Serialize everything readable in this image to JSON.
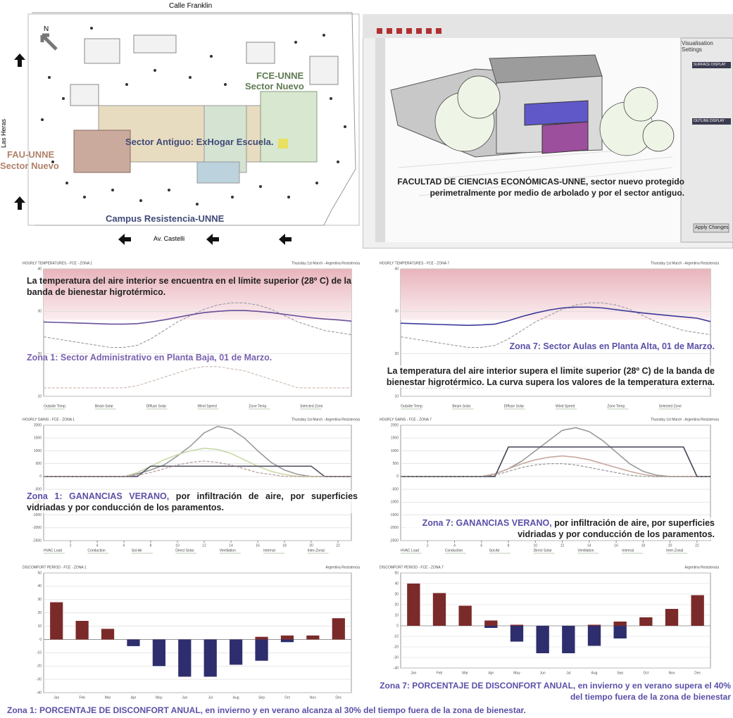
{
  "map": {
    "street_top": "Calle Franklin",
    "north": "N",
    "fce_label": "FCE-UNNE",
    "fce_sector": "Sector Nuevo",
    "street_left": "Las Heras",
    "fau_label": "FAU-UNNE",
    "fau_sector": "Sector Nuevo",
    "old_sector": "Sector Antiguo: ExHogar Escuela.",
    "campus": "Campus Resistencia-UNNE",
    "street_bottom": "Av. Castelli"
  },
  "screenshot": {
    "panel_title": "Visualisation Settings",
    "surface_section": "SURFACE DISPLAY",
    "outline_section": "OUTLINE DISPLAY",
    "apply_button": "Apply Changes",
    "caption_line1": "FACULTAD DE CIENCIAS ECONÓMICAS-UNNE, sector nuevo protegido",
    "caption_line2": "perimetralmente por medio de arbolado y por el sector antiguo."
  },
  "chart_data": [
    {
      "type": "line",
      "title": "HOURLY TEMPERATURES - FCE - ZONA 1",
      "subtitle": "Thursday 1st March - Argentina Resistencia",
      "x": [
        0,
        1,
        2,
        3,
        4,
        5,
        6,
        7,
        8,
        9,
        10,
        11,
        12,
        13,
        14,
        15,
        16,
        17,
        18,
        19,
        20,
        21,
        22,
        23
      ],
      "xlim": [
        0,
        23
      ],
      "ylim": [
        10,
        40
      ],
      "yticks": [
        10,
        20,
        30,
        40
      ],
      "comfort_band": [
        28,
        40
      ],
      "series": [
        {
          "color": "#9a9aa8",
          "dash": true,
          "values": [
            24,
            23.5,
            23,
            22.5,
            22,
            21.5,
            21.5,
            22,
            23.5,
            25.5,
            27.5,
            29,
            30.5,
            31.5,
            32,
            32,
            31.5,
            30.5,
            29,
            27.5,
            26.5,
            25.5,
            25,
            24.5
          ]
        },
        {
          "color": "#c9b9b0",
          "dash": true,
          "values": [
            12,
            12,
            12,
            12,
            12,
            12,
            12,
            12.5,
            13.5,
            14.5,
            15.5,
            16.5,
            17,
            17,
            16.5,
            16,
            15,
            14,
            13,
            12,
            12,
            12,
            12,
            12
          ]
        },
        {
          "color": "#6a4f9a",
          "dash": false,
          "values": [
            27.5,
            27.4,
            27.3,
            27.2,
            27.1,
            27,
            27,
            27.1,
            27.5,
            28,
            28.6,
            29.2,
            29.7,
            30,
            30.2,
            30.2,
            30,
            29.7,
            29.3,
            28.9,
            28.5,
            28.2,
            28,
            27.7
          ]
        }
      ],
      "legend_items": [
        "Outside Temp.",
        "Beam Solar",
        "Diffuse Solar",
        "Wind Speed",
        "Zone Temp.",
        "Selected Zone"
      ],
      "annotation": "La temperatura del aire interior se encuentra en el límite superior (28º C) de la banda de bienestar higrotérmico.",
      "caption": {
        "highlight": "Zona 1: Sector Administrativo en Planta Baja, 01 de Marzo.",
        "text": ""
      }
    },
    {
      "type": "line",
      "title": "HOURLY TEMPERATURES - FCE - ZONA 7",
      "subtitle": "Thursday 1st March - Argentina Resistencia",
      "x": [
        0,
        1,
        2,
        3,
        4,
        5,
        6,
        7,
        8,
        9,
        10,
        11,
        12,
        13,
        14,
        15,
        16,
        17,
        18,
        19,
        20,
        21,
        22,
        23
      ],
      "xlim": [
        0,
        23
      ],
      "ylim": [
        10,
        40
      ],
      "yticks": [
        10,
        20,
        30,
        40
      ],
      "comfort_band": [
        28,
        40
      ],
      "series": [
        {
          "color": "#9a9aa8",
          "dash": true,
          "values": [
            24,
            23.5,
            23,
            22.5,
            22,
            21.5,
            21.5,
            22,
            23.5,
            25.5,
            27.5,
            29,
            30.5,
            31.5,
            32,
            32,
            31.5,
            30.5,
            29,
            27.5,
            26.5,
            25.5,
            25,
            24.5
          ]
        },
        {
          "color": "#c9b9b0",
          "dash": true,
          "values": [
            12,
            12,
            12,
            12,
            12,
            12,
            12,
            12.5,
            13.5,
            14.5,
            15.5,
            16.5,
            17,
            17,
            16.5,
            16,
            15,
            14,
            13,
            12,
            12,
            12,
            12,
            12
          ]
        },
        {
          "color": "#3c3a98",
          "dash": false,
          "values": [
            27.2,
            27.1,
            27,
            26.9,
            26.8,
            26.7,
            26.8,
            27,
            27.8,
            28.8,
            29.6,
            30.3,
            30.8,
            31,
            31,
            30.8,
            30.4,
            30,
            29.6,
            29.3,
            29,
            28.7,
            28.4,
            27.6
          ]
        }
      ],
      "legend_items": [
        "Outside Temp.",
        "Beam Solar",
        "Diffuse Solar",
        "Wind Speed",
        "Zone Temp.",
        "Selected Zone"
      ],
      "annotation": "La temperatura del aire interior supera el limite superior (28º C) de la banda de bienestar higrotérmico. La curva supera los valores de la temperatura externa.",
      "caption": {
        "highlight": "Zona 7: Sector Aulas en Planta Alta, 01 de Marzo.",
        "text": ""
      }
    },
    {
      "type": "line",
      "title": "HOURLY GAINS - FCE - ZONA 1",
      "subtitle": "Thursday 1st March - Argentina Resistencia",
      "x": [
        0,
        1,
        2,
        3,
        4,
        5,
        6,
        7,
        8,
        9,
        10,
        11,
        12,
        13,
        14,
        15,
        16,
        17,
        18,
        19,
        20,
        21,
        22,
        23
      ],
      "xlim": [
        0,
        23
      ],
      "xticks": [
        2,
        4,
        6,
        8,
        10,
        12,
        14,
        16,
        18,
        20,
        22
      ],
      "ylim": [
        -2500,
        2000
      ],
      "yticks": [
        -2500,
        -2000,
        -1500,
        -1000,
        -500,
        0,
        500,
        1000,
        1500,
        2000
      ],
      "series": [
        {
          "color": "#9a9a9a",
          "dash": false,
          "values": [
            0,
            0,
            0,
            0,
            0,
            0,
            0,
            100,
            250,
            450,
            800,
            1200,
            1700,
            1950,
            1850,
            1500,
            1000,
            550,
            250,
            80,
            0,
            0,
            0,
            0
          ]
        },
        {
          "color": "#c8d8a8",
          "dash": false,
          "values": [
            0,
            0,
            0,
            0,
            0,
            0,
            0,
            150,
            400,
            650,
            850,
            1000,
            1100,
            1050,
            900,
            650,
            400,
            200,
            80,
            0,
            0,
            0,
            0,
            0
          ]
        },
        {
          "color": "#555566",
          "dash": false,
          "values": [
            0,
            0,
            0,
            0,
            0,
            0,
            0,
            0,
            400,
            400,
            400,
            400,
            400,
            400,
            400,
            400,
            400,
            400,
            400,
            400,
            400,
            0,
            0,
            0
          ]
        },
        {
          "color": "#b09090",
          "dash": true,
          "values": [
            0,
            0,
            0,
            0,
            0,
            0,
            0,
            50,
            150,
            300,
            450,
            550,
            600,
            550,
            450,
            300,
            150,
            80,
            0,
            0,
            0,
            0,
            0,
            0
          ]
        }
      ],
      "legend_items": [
        "HVAC Load",
        "Conduction",
        "Sol-Air",
        "Direct Solar",
        "Ventilation",
        "Internal",
        "Inter-Zonal"
      ],
      "caption": {
        "highlight": "Zona 1: GANANCIAS VERANO,",
        "text": " por infiltración de aire, por superficies vidriadas y por conducción de los paramentos."
      }
    },
    {
      "type": "line",
      "title": "HOURLY GAINS - FCE - ZONA 7",
      "subtitle": "Thursday 1st March - Argentina Resistencia",
      "x": [
        0,
        1,
        2,
        3,
        4,
        5,
        6,
        7,
        8,
        9,
        10,
        11,
        12,
        13,
        14,
        15,
        16,
        17,
        18,
        19,
        20,
        21,
        22,
        23
      ],
      "xlim": [
        0,
        23
      ],
      "xticks": [
        2,
        4,
        6,
        8,
        10,
        12,
        14,
        16,
        18,
        20,
        22
      ],
      "ylim": [
        -2500,
        2000
      ],
      "yticks": [
        -2500,
        -2000,
        -1500,
        -1000,
        -500,
        0,
        500,
        1000,
        1500,
        2000
      ],
      "series": [
        {
          "color": "#9a9a9a",
          "dash": false,
          "values": [
            0,
            0,
            0,
            0,
            0,
            0,
            0,
            100,
            300,
            600,
            1000,
            1400,
            1800,
            1900,
            1750,
            1400,
            950,
            500,
            200,
            50,
            0,
            0,
            0,
            0
          ]
        },
        {
          "color": "#c8a8a0",
          "dash": false,
          "values": [
            0,
            0,
            0,
            0,
            0,
            0,
            0,
            100,
            300,
            500,
            650,
            750,
            800,
            750,
            650,
            500,
            350,
            200,
            80,
            0,
            0,
            0,
            0,
            0
          ]
        },
        {
          "color": "#444455",
          "dash": false,
          "values": [
            0,
            0,
            0,
            0,
            0,
            0,
            0,
            0,
            1150,
            1150,
            1150,
            1150,
            1150,
            1150,
            1150,
            1150,
            1150,
            1150,
            1150,
            1150,
            1150,
            1150,
            0,
            0
          ]
        },
        {
          "color": "#909090",
          "dash": true,
          "values": [
            0,
            0,
            0,
            0,
            0,
            0,
            0,
            50,
            200,
            350,
            450,
            500,
            500,
            450,
            350,
            250,
            150,
            50,
            0,
            0,
            0,
            0,
            0,
            0
          ]
        }
      ],
      "legend_items": [
        "HVAC Load",
        "Conduction",
        "Sol-Air",
        "Direct Solar",
        "Ventilation",
        "Internal",
        "Inter-Zonal"
      ],
      "caption": {
        "highlight": "Zona 7: GANANCIAS VERANO,",
        "text": " por infiltración de aire, por superficies vidriadas y por conducción de los paramentos."
      }
    },
    {
      "type": "bar",
      "title": "DISCOMFORT PERIOD - FCE - ZONA 1",
      "subtitle": "Argentina Resistencia",
      "categories": [
        "Jan",
        "Feb",
        "Mar",
        "Apr",
        "May",
        "Jun",
        "Jul",
        "Aug",
        "Sep",
        "Oct",
        "Nov",
        "Dec"
      ],
      "ylim": [
        -40,
        50
      ],
      "yticks": [
        -40,
        -30,
        -20,
        -10,
        0,
        10,
        20,
        30,
        40,
        50
      ],
      "series": [
        {
          "color": "#7b2a2a",
          "values": [
            28,
            14,
            8,
            0,
            0,
            0,
            0,
            0,
            2,
            3,
            3,
            16
          ]
        },
        {
          "color": "#2e2e6e",
          "values": [
            0,
            0,
            0,
            -5,
            -20,
            -28,
            -28,
            -19,
            -16,
            -2,
            0,
            0
          ]
        }
      ],
      "caption": {
        "highlight": "Zona 1: PORCENTAJE DE DISCONFORT ANUAL,",
        "text": " en invierno y en verano alcanza al 30% del tiempo fuera de la zona de bienestar."
      }
    },
    {
      "type": "bar",
      "title": "DISCOMFORT PERIOD - FCE - ZONA 7",
      "subtitle": "Argentina Resistencia",
      "categories": [
        "Jan",
        "Feb",
        "Mar",
        "Apr",
        "May",
        "Jun",
        "Jul",
        "Aug",
        "Sep",
        "Oct",
        "Nov",
        "Dec"
      ],
      "ylim": [
        -40,
        50
      ],
      "yticks": [
        -40,
        -30,
        -20,
        -10,
        0,
        10,
        20,
        30,
        40,
        50
      ],
      "series": [
        {
          "color": "#7b2a2a",
          "values": [
            40,
            31,
            19,
            5,
            1,
            0,
            0,
            1,
            4,
            8,
            16,
            29
          ]
        },
        {
          "color": "#2e2e6e",
          "values": [
            0,
            0,
            0,
            -2,
            -15,
            -26,
            -26,
            -19,
            -12,
            0,
            0,
            0
          ]
        }
      ],
      "caption": {
        "highlight": "Zona 7: PORCENTAJE DE DISCONFORT ANUAL,",
        "text": " en invierno y en verano supera el 40% del tiempo fuera de la zona de bienestar"
      }
    }
  ]
}
